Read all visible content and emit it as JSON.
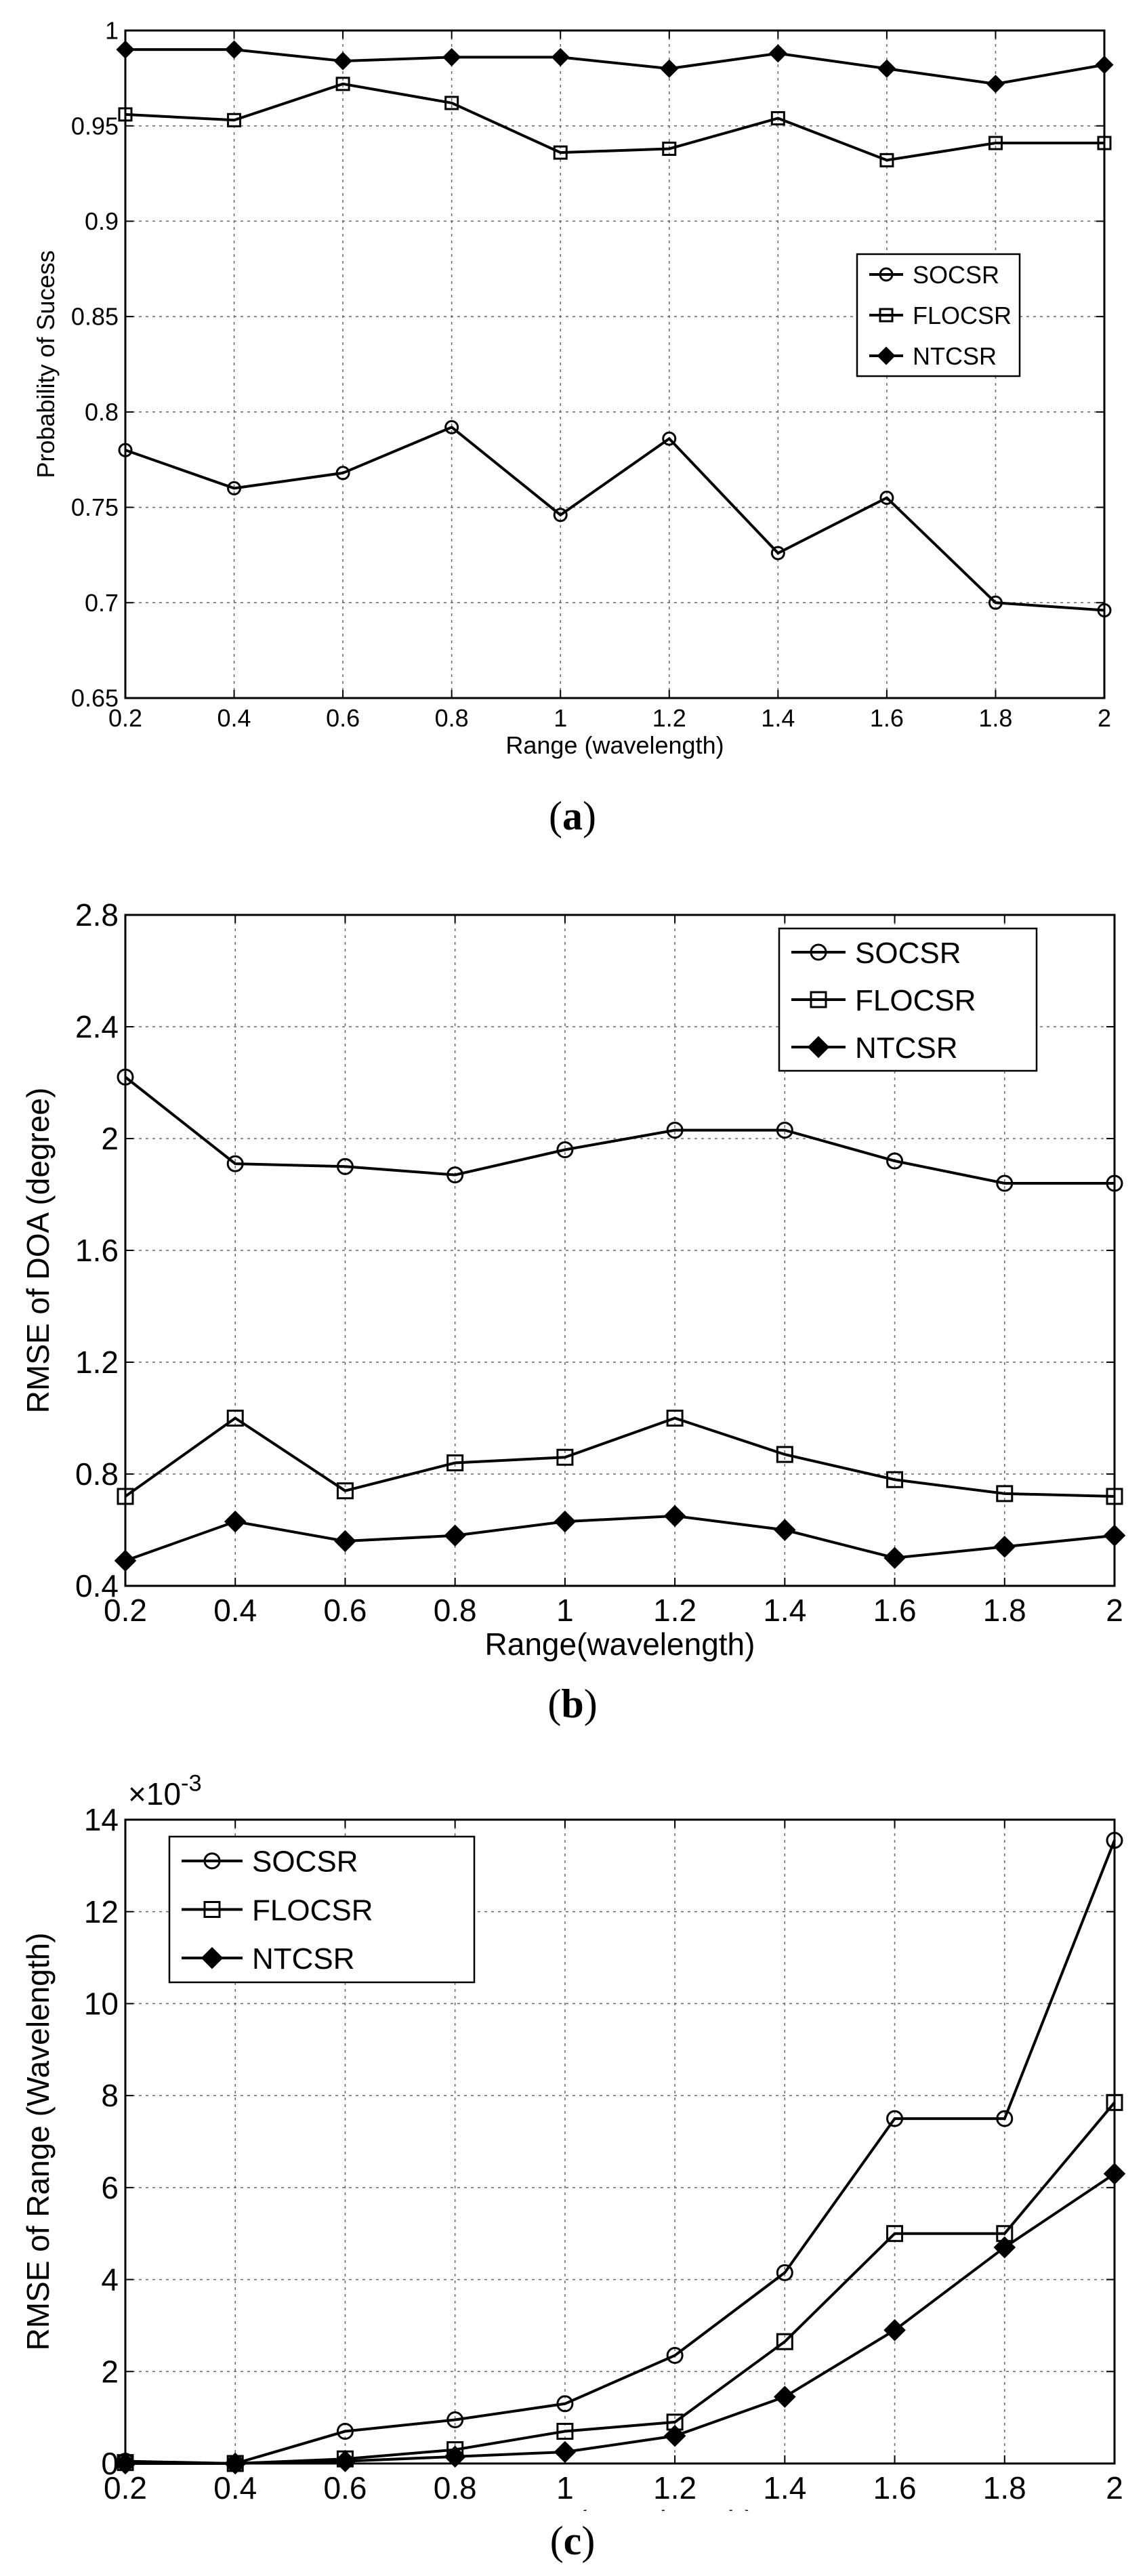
{
  "chart_data": [
    {
      "type": "line",
      "title": "",
      "xlabel": "Range  (wavelength)",
      "ylabel": "Probability of Sucess",
      "caption": "a",
      "x": [
        0.2,
        0.4,
        0.6,
        0.8,
        1,
        1.2,
        1.4,
        1.6,
        1.8,
        2
      ],
      "xlim": [
        0.2,
        2
      ],
      "ylim": [
        0.65,
        1
      ],
      "xticks": [
        "0.2",
        "0.4",
        "0.6",
        "0.8",
        "1",
        "1.2",
        "1.4",
        "1.6",
        "1.8",
        "2"
      ],
      "yticks": [
        "0.65",
        "0.7",
        "0.75",
        "0.8",
        "0.85",
        "0.9",
        "0.95",
        "1"
      ],
      "grid": true,
      "legend_position": "middle-right",
      "series": [
        {
          "name": "SOCSR",
          "marker": "circle",
          "values": [
            0.78,
            0.76,
            0.768,
            0.792,
            0.746,
            0.786,
            0.726,
            0.755,
            0.7,
            0.696
          ]
        },
        {
          "name": "FLOCSR",
          "marker": "square",
          "values": [
            0.956,
            0.953,
            0.972,
            0.962,
            0.936,
            0.938,
            0.954,
            0.932,
            0.941,
            0.941
          ]
        },
        {
          "name": "NTCSR",
          "marker": "diamond",
          "values": [
            0.99,
            0.99,
            0.984,
            0.986,
            0.986,
            0.98,
            0.988,
            0.98,
            0.972,
            0.982
          ]
        }
      ]
    },
    {
      "type": "line",
      "title": "",
      "xlabel": "Range(wavelength)",
      "ylabel": "RMSE of DOA (degree)",
      "caption": "b",
      "x": [
        0.2,
        0.4,
        0.6,
        0.8,
        1,
        1.2,
        1.4,
        1.6,
        1.8,
        2
      ],
      "xlim": [
        0.2,
        2
      ],
      "ylim": [
        0.4,
        2.8
      ],
      "xticks": [
        "0.2",
        "0.4",
        "0.6",
        "0.8",
        "1",
        "1.2",
        "1.4",
        "1.6",
        "1.8",
        "2"
      ],
      "yticks": [
        "0.4",
        "0.8",
        "1.2",
        "1.6",
        "2",
        "2.4",
        "2.8"
      ],
      "grid": true,
      "legend_position": "top-right",
      "series": [
        {
          "name": "SOCSR",
          "marker": "circle",
          "values": [
            2.22,
            1.91,
            1.9,
            1.87,
            1.96,
            2.03,
            2.03,
            1.92,
            1.84,
            1.84
          ]
        },
        {
          "name": "FLOCSR",
          "marker": "square",
          "values": [
            0.72,
            1.0,
            0.74,
            0.84,
            0.86,
            1.0,
            0.87,
            0.78,
            0.73,
            0.72
          ]
        },
        {
          "name": "NTCSR",
          "marker": "diamond",
          "values": [
            0.49,
            0.63,
            0.56,
            0.58,
            0.63,
            0.65,
            0.6,
            0.5,
            0.54,
            0.58
          ]
        }
      ]
    },
    {
      "type": "line",
      "title": "",
      "xlabel": "Range(wavelength)",
      "ylabel": "RMSE of Range (Wavelength)",
      "caption": "c",
      "exponent_label": "×10",
      "exponent_power": "-3",
      "x": [
        0.2,
        0.4,
        0.6,
        0.8,
        1,
        1.2,
        1.4,
        1.6,
        1.8,
        2
      ],
      "xlim": [
        0.2,
        2
      ],
      "ylim": [
        0,
        14
      ],
      "xticks": [
        "0.2",
        "0.4",
        "0.6",
        "0.8",
        "1",
        "1.2",
        "1.4",
        "1.6",
        "1.8",
        "2"
      ],
      "yticks": [
        "0",
        "2",
        "4",
        "6",
        "8",
        "10",
        "12",
        "14"
      ],
      "grid": true,
      "legend_position": "top-left",
      "series": [
        {
          "name": "SOCSR",
          "marker": "circle",
          "values": [
            0.05,
            0.0,
            0.7,
            0.95,
            1.3,
            2.35,
            4.15,
            7.5,
            7.5,
            13.55
          ]
        },
        {
          "name": "FLOCSR",
          "marker": "square",
          "values": [
            0.02,
            0.0,
            0.1,
            0.3,
            0.7,
            0.9,
            2.65,
            5.0,
            5.0,
            7.85
          ]
        },
        {
          "name": "NTCSR",
          "marker": "diamond",
          "values": [
            0.0,
            0.0,
            0.05,
            0.15,
            0.25,
            0.6,
            1.45,
            2.9,
            4.7,
            6.3
          ]
        }
      ]
    }
  ]
}
